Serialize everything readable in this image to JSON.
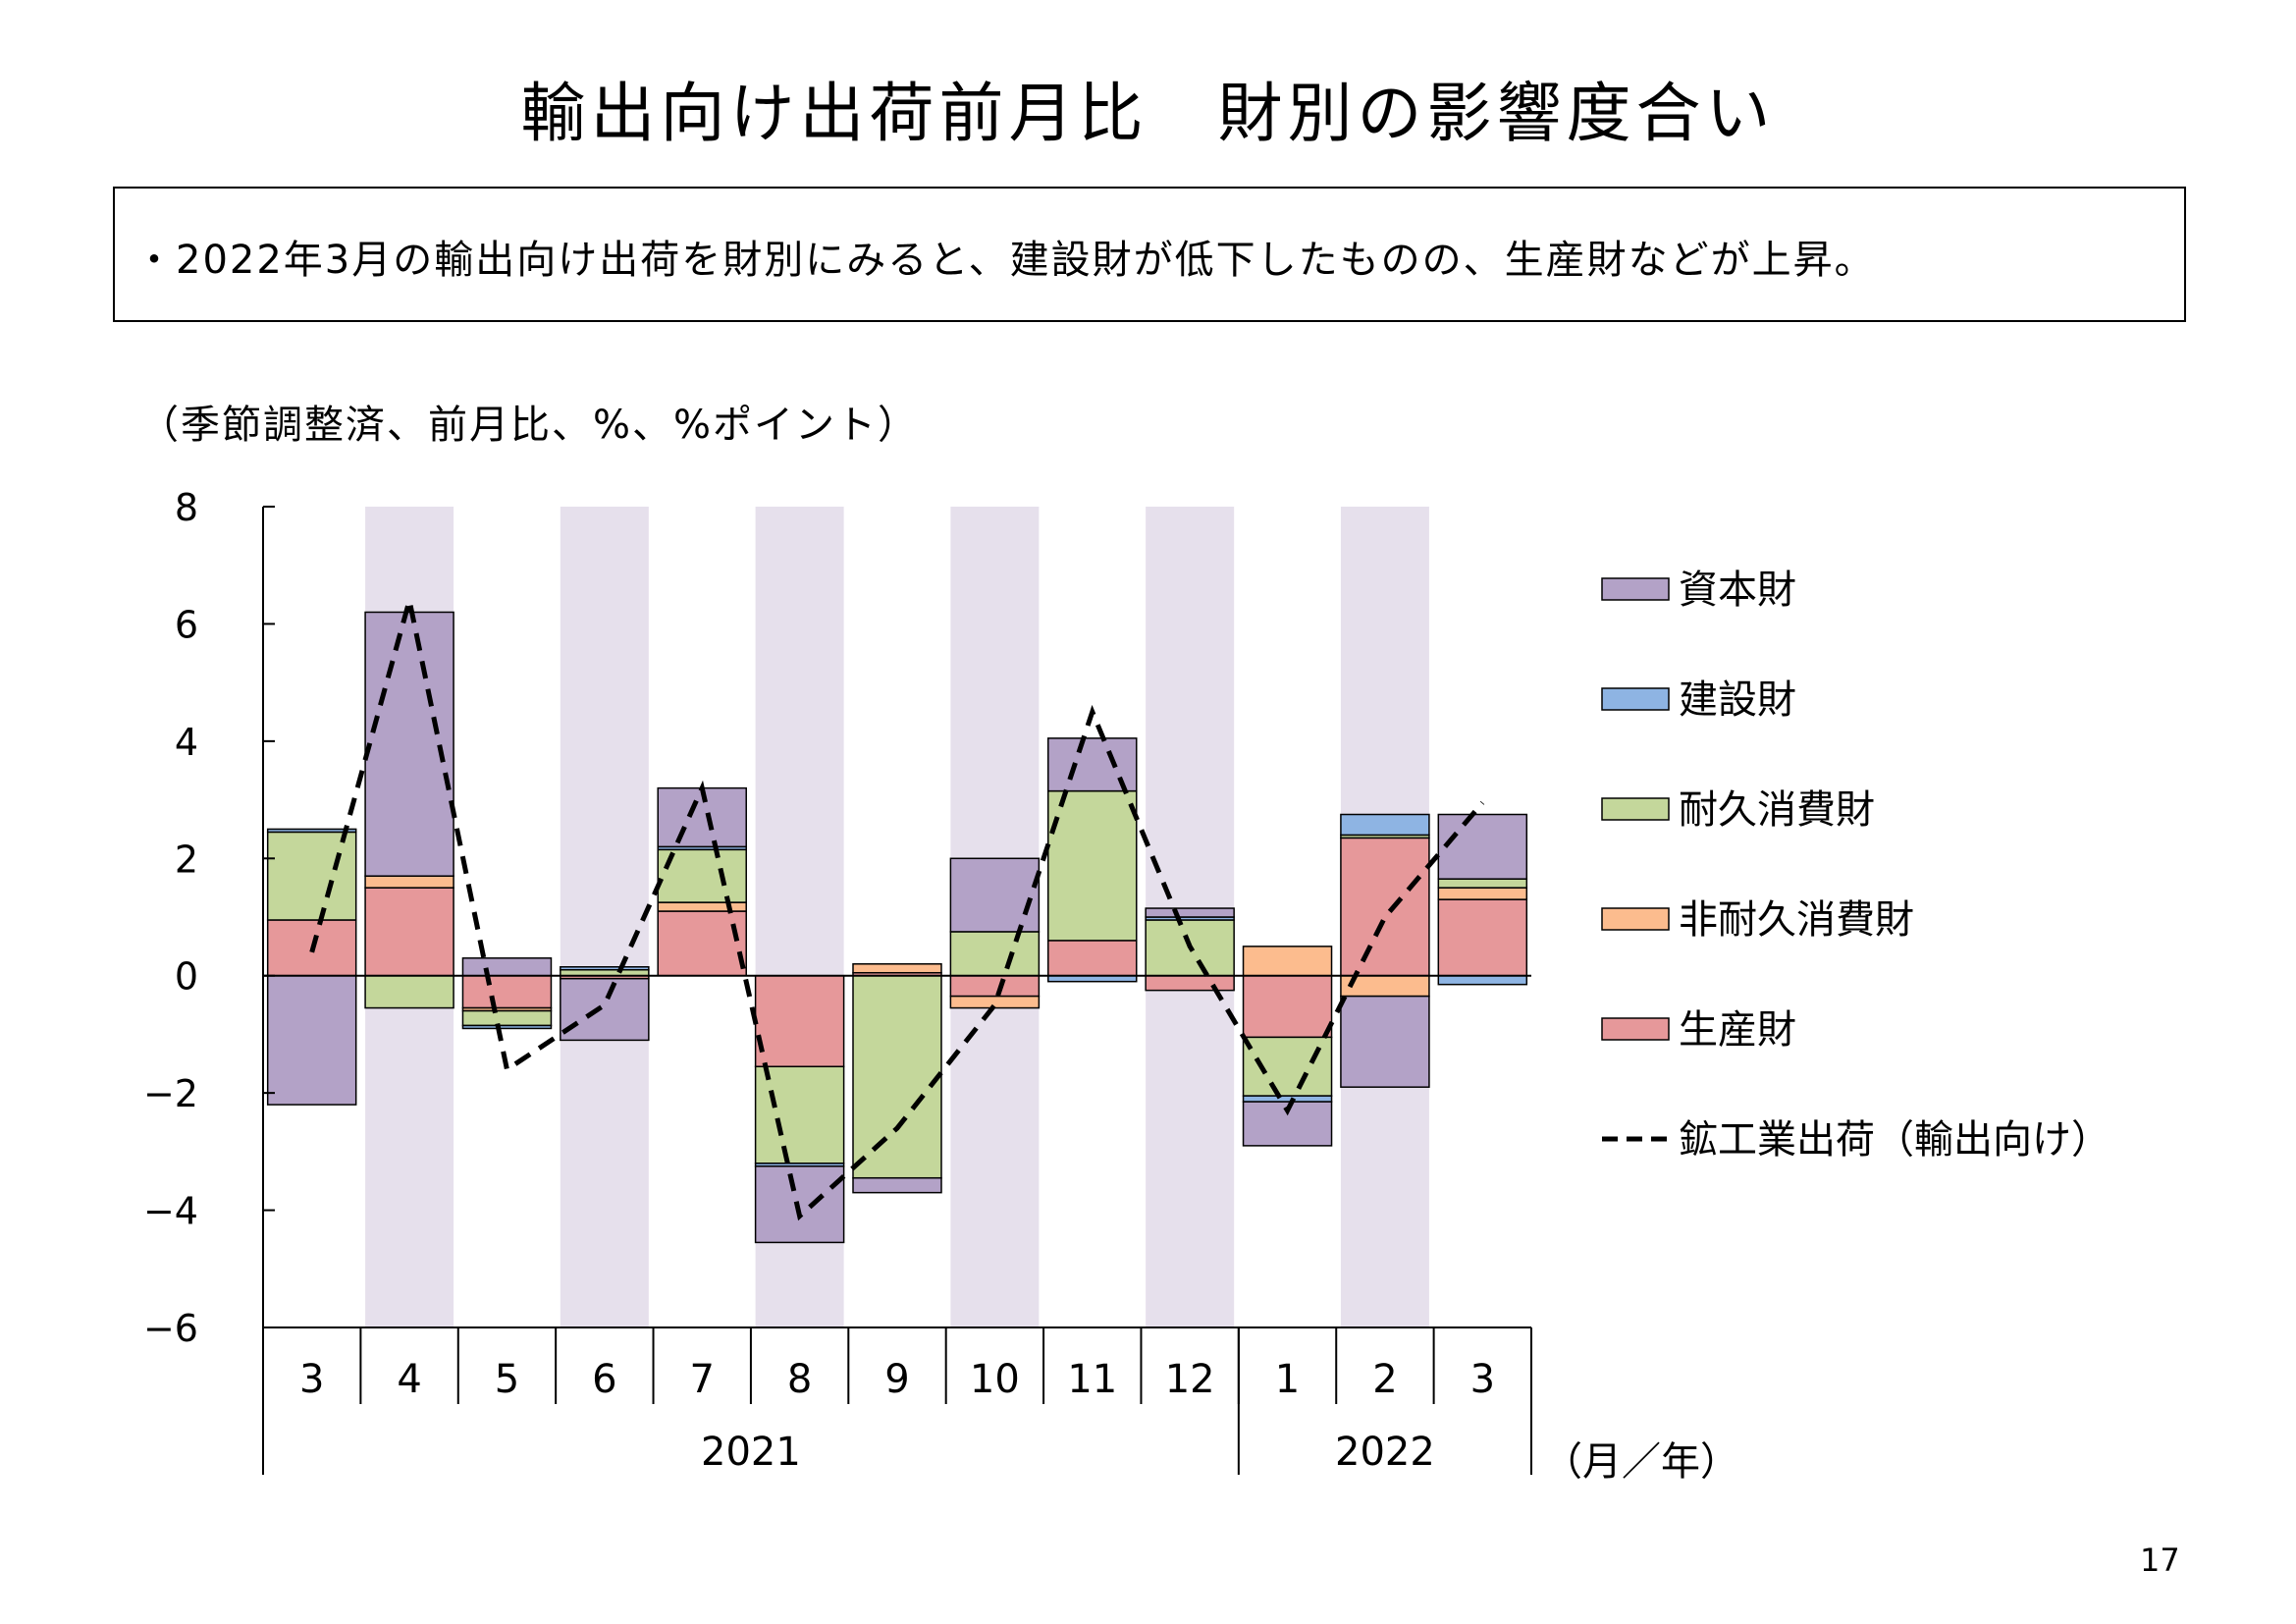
{
  "title": "輸出向け出荷前月比　財別の影響度合い",
  "summary": "・2022年3月の輸出向け出荷を財別にみると、建設財が低下したものの、生産財などが上昇。",
  "units_note": "（季節調整済、前月比、%、%ポイント）",
  "page_number": "17",
  "colors": {
    "capital": "#b3a2c7",
    "construction": "#8eb4e3",
    "durable": "#c4d79b",
    "nondurable": "#fcbc8e",
    "production": "#e6989a",
    "shade": "#e6e0ec",
    "line": "#000000"
  },
  "chart_data": {
    "type": "bar",
    "stacked": true,
    "categories": [
      "3",
      "4",
      "5",
      "6",
      "7",
      "8",
      "9",
      "10",
      "11",
      "12",
      "1",
      "2",
      "3"
    ],
    "year_groups": [
      {
        "label": "2021",
        "count": 10
      },
      {
        "label": "2022",
        "count": 3
      }
    ],
    "axis_unit_label": "（月／年）",
    "y_ticks": [
      "8",
      "6",
      "4",
      "2",
      "0",
      "−2",
      "−4",
      "−6"
    ],
    "ylim": [
      -6,
      8
    ],
    "shaded_categories": [
      "4",
      "6",
      "8",
      "10",
      "12",
      "2"
    ],
    "series": [
      {
        "key": "production",
        "name": "生産財",
        "values": [
          0.95,
          1.5,
          -0.55,
          -0.05,
          1.1,
          -1.55,
          0.05,
          -0.35,
          0.6,
          -0.25,
          -1.05,
          2.35,
          1.3
        ]
      },
      {
        "key": "nondurable",
        "name": "非耐久消費財",
        "values": [
          0.0,
          0.2,
          -0.05,
          0.0,
          0.15,
          0.0,
          0.15,
          -0.2,
          0.0,
          0.0,
          0.5,
          -0.35,
          0.2
        ]
      },
      {
        "key": "durable",
        "name": "耐久消費財",
        "values": [
          1.5,
          -0.55,
          -0.25,
          0.1,
          0.9,
          -1.65,
          -3.45,
          0.75,
          2.55,
          0.95,
          -1.0,
          0.05,
          0.15
        ]
      },
      {
        "key": "construction",
        "name": "建設財",
        "values": [
          0.05,
          0.0,
          -0.05,
          0.05,
          0.05,
          -0.05,
          0.0,
          0.0,
          -0.1,
          0.05,
          -0.1,
          0.35,
          -0.15
        ]
      },
      {
        "key": "capital",
        "name": "資本財",
        "values": [
          -2.2,
          4.5,
          0.3,
          -1.05,
          1.0,
          -1.3,
          -0.25,
          1.25,
          0.9,
          0.15,
          -0.75,
          -1.55,
          1.1
        ]
      }
    ],
    "line": {
      "key": "total",
      "name": "鉱工業出荷（輸出向け）",
      "style": "dashed",
      "values": [
        0.4,
        6.4,
        -1.6,
        -0.5,
        3.2,
        -4.1,
        -2.6,
        -0.5,
        4.5,
        0.5,
        -2.3,
        1.0,
        2.95
      ]
    },
    "legend_order": [
      "capital",
      "construction",
      "durable",
      "nondurable",
      "production",
      "total"
    ],
    "legend_position": "right"
  }
}
